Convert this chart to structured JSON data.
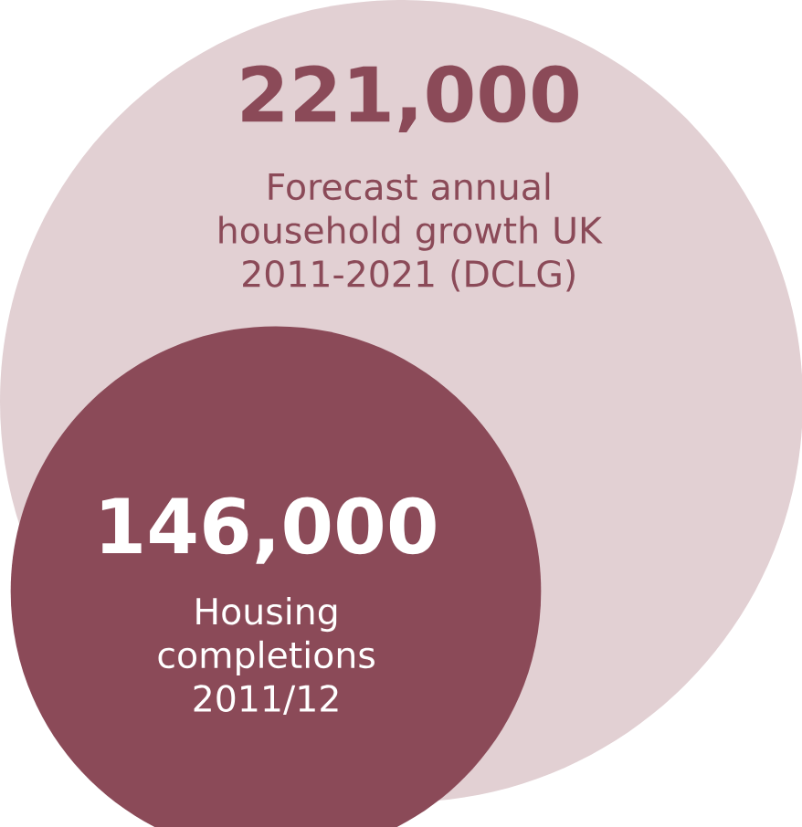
{
  "chart_data": {
    "type": "other",
    "categories": [
      "Forecast annual household growth UK 2011-2021 (DCLG)",
      "Housing completions 2011/12"
    ],
    "values": [
      221000,
      146000
    ],
    "value_labels": [
      "221,000",
      "146,000"
    ],
    "colors": [
      "#e2d0d3",
      "#8b4a58"
    ]
  }
}
